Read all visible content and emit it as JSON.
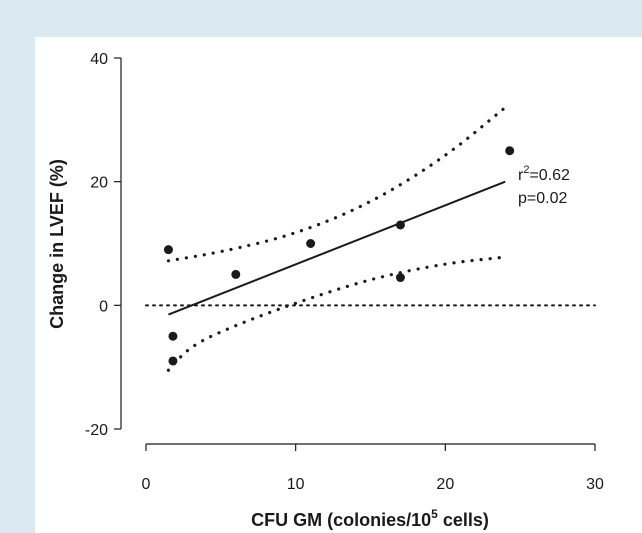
{
  "chart_data": {
    "type": "scatter",
    "xlabel_main": "CFU GM (colonies/10",
    "xlabel_sup": "5",
    "xlabel_tail": " cells)",
    "ylabel": "Change in LVEF (%)",
    "xlim": [
      0,
      30
    ],
    "ylim": [
      -20,
      40
    ],
    "x_ticks": [
      0,
      10,
      20,
      30
    ],
    "y_ticks": [
      -20,
      0,
      20,
      40
    ],
    "points": [
      {
        "x": 1.5,
        "y": 9
      },
      {
        "x": 1.8,
        "y": -5
      },
      {
        "x": 1.8,
        "y": -9
      },
      {
        "x": 6,
        "y": 5
      },
      {
        "x": 11,
        "y": 10
      },
      {
        "x": 17,
        "y": 13
      },
      {
        "x": 17,
        "y": 4.5
      },
      {
        "x": 24.3,
        "y": 25
      }
    ],
    "regression": {
      "x": [
        1.5,
        24
      ],
      "y": [
        -1.5,
        20
      ]
    },
    "ci_upper": [
      [
        1.5,
        7.2
      ],
      [
        5,
        8.6
      ],
      [
        10,
        11.5
      ],
      [
        15,
        16.5
      ],
      [
        20,
        24
      ],
      [
        24,
        32
      ]
    ],
    "ci_lower": [
      [
        1.5,
        -10.5
      ],
      [
        3,
        -6.5
      ],
      [
        6,
        -3.2
      ],
      [
        10,
        0.4
      ],
      [
        15,
        4.3
      ],
      [
        20,
        6.8
      ],
      [
        24,
        7.8
      ]
    ],
    "zero_line": {
      "y": 0,
      "style": "dotted"
    },
    "annotation": {
      "r_label": "r",
      "r_sup": "2",
      "r_value": "=0.62",
      "p_text": "p=0.02"
    },
    "grid": false
  }
}
